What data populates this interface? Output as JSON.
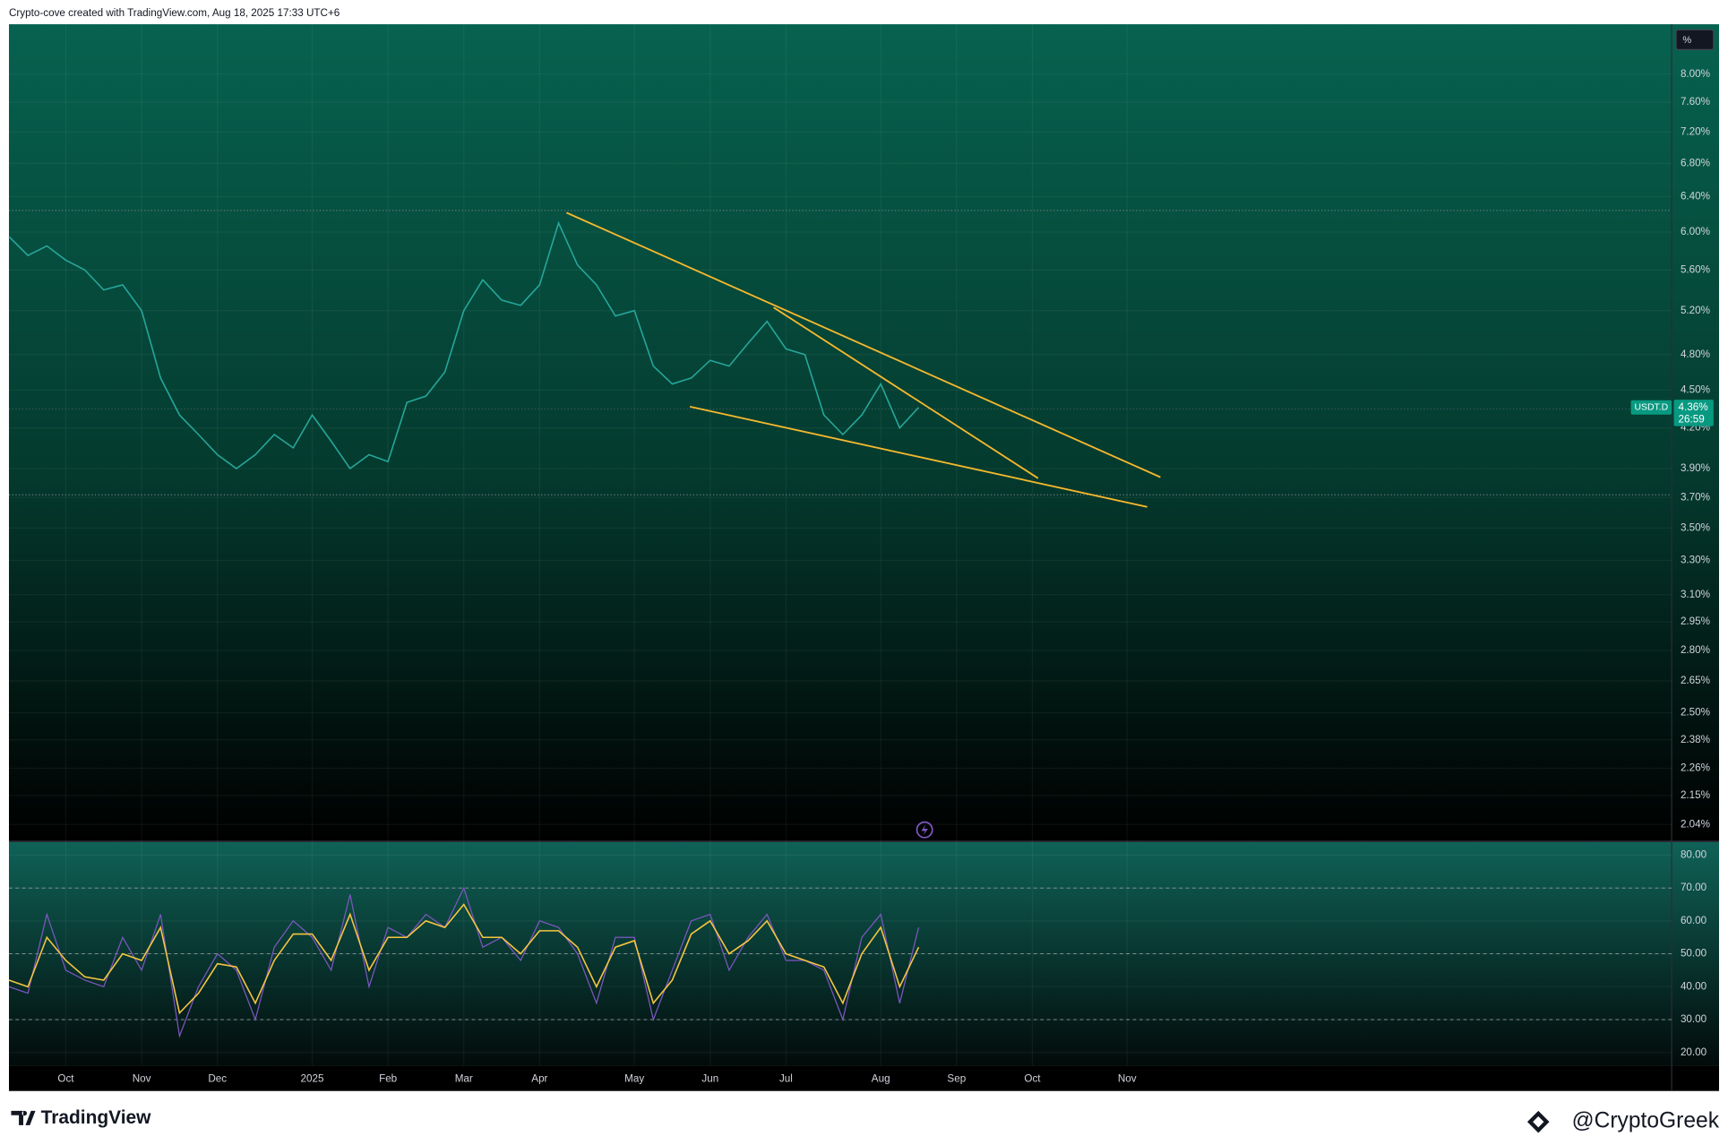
{
  "header": {
    "title": "Crypto-cove created with TradingView.com, Aug 18, 2025 17:33 UTC+6"
  },
  "footer": {
    "brand": "TradingView",
    "author": "@CryptoGreek"
  },
  "scale_button": "%",
  "chart_data": [
    {
      "type": "line",
      "log_scale": true,
      "grid": true,
      "color": "#26a69a",
      "values": [
        5.95,
        5.75,
        5.85,
        5.7,
        5.6,
        5.4,
        5.45,
        5.2,
        4.6,
        4.3,
        4.15,
        4.0,
        3.9,
        4.0,
        4.15,
        4.05,
        4.3,
        4.1,
        3.9,
        4.0,
        3.95,
        4.4,
        4.45,
        4.65,
        5.2,
        5.5,
        5.3,
        5.25,
        5.45,
        6.1,
        5.65,
        5.45,
        5.15,
        5.2,
        4.7,
        4.55,
        4.6,
        4.75,
        4.7,
        4.9,
        5.1,
        4.85,
        4.8,
        4.3,
        4.15,
        4.3,
        4.55,
        4.2,
        4.36
      ],
      "ylim": [
        1.98,
        8.76
      ],
      "yticks": [
        {
          "value": 8.0,
          "label": "8.00%"
        },
        {
          "value": 7.6,
          "label": "7.60%"
        },
        {
          "value": 7.2,
          "label": "7.20%"
        },
        {
          "value": 6.8,
          "label": "6.80%"
        },
        {
          "value": 6.4,
          "label": "6.40%"
        },
        {
          "value": 6.0,
          "label": "6.00%"
        },
        {
          "value": 5.6,
          "label": "5.60%"
        },
        {
          "value": 5.2,
          "label": "5.20%"
        },
        {
          "value": 4.8,
          "label": "4.80%"
        },
        {
          "value": 4.5,
          "label": "4.50%"
        },
        {
          "value": 4.2,
          "label": "4.20%"
        },
        {
          "value": 3.9,
          "label": "3.90%"
        },
        {
          "value": 3.7,
          "label": "3.70%"
        },
        {
          "value": 3.5,
          "label": "3.50%"
        },
        {
          "value": 3.3,
          "label": "3.30%"
        },
        {
          "value": 3.1,
          "label": "3.10%"
        },
        {
          "value": 2.95,
          "label": "2.95%"
        },
        {
          "value": 2.8,
          "label": "2.80%"
        },
        {
          "value": 2.65,
          "label": "2.65%"
        },
        {
          "value": 2.5,
          "label": "2.50%"
        },
        {
          "value": 2.38,
          "label": "2.38%"
        },
        {
          "value": 2.26,
          "label": "2.26%"
        },
        {
          "value": 2.15,
          "label": "2.15%"
        },
        {
          "value": 2.04,
          "label": "2.04%"
        }
      ],
      "price_tag": {
        "symbol": "USDT.D",
        "value": 4.36,
        "label": "4.36%",
        "countdown": "26:59",
        "color": "#089981"
      }
    },
    {
      "type": "line",
      "grid": true,
      "categories": [
        null,
        null,
        null,
        "Oct",
        null,
        null,
        null,
        "Nov",
        null,
        null,
        null,
        "Dec",
        null,
        null,
        null,
        null,
        "2025",
        null,
        null,
        null,
        "Feb",
        null,
        null,
        null,
        "Mar",
        null,
        null,
        null,
        "Apr",
        null,
        null,
        null,
        null,
        "May",
        null,
        null,
        null,
        "Jun",
        null,
        null,
        null,
        "Jul",
        null,
        null,
        null,
        null,
        "Aug",
        null,
        null,
        null,
        "Sep",
        null,
        null,
        null,
        "Oct",
        null,
        null,
        null,
        null,
        "Nov",
        null
      ],
      "series": [
        {
          "color": "#7e57c2",
          "values": [
            40,
            38,
            62,
            45,
            42,
            40,
            55,
            45,
            62,
            25,
            40,
            50,
            45,
            30,
            52,
            60,
            55,
            45,
            68,
            40,
            58,
            55,
            62,
            58,
            70,
            52,
            55,
            48,
            60,
            58,
            50,
            35,
            55,
            55,
            30,
            45,
            60,
            62,
            45,
            55,
            62,
            48,
            48,
            45,
            30,
            55,
            62,
            35,
            58,
            null,
            null,
            null,
            null,
            null,
            null,
            null,
            null,
            null,
            null,
            null,
            null
          ]
        },
        {
          "color": "#f5c542",
          "values": [
            42,
            40,
            55,
            48,
            43,
            42,
            50,
            48,
            58,
            32,
            38,
            47,
            46,
            35,
            48,
            56,
            56,
            48,
            62,
            45,
            55,
            55,
            60,
            58,
            65,
            55,
            55,
            50,
            57,
            57,
            52,
            40,
            52,
            54,
            35,
            42,
            56,
            60,
            50,
            54,
            60,
            50,
            48,
            46,
            35,
            50,
            58,
            40,
            52,
            null,
            null,
            null,
            null,
            null,
            null,
            null,
            null,
            null,
            null,
            null,
            null
          ]
        }
      ],
      "levels": [
        30,
        50,
        70
      ],
      "ylim": [
        16,
        84
      ],
      "yticks": [
        {
          "value": 80,
          "label": "80.00"
        },
        {
          "value": 70,
          "label": "70.00"
        },
        {
          "value": 60,
          "label": "60.00"
        },
        {
          "value": 50,
          "label": "50.00"
        },
        {
          "value": 40,
          "label": "40.00"
        },
        {
          "value": 30,
          "label": "30.00"
        },
        {
          "value": 20,
          "label": "20.00"
        }
      ]
    }
  ]
}
